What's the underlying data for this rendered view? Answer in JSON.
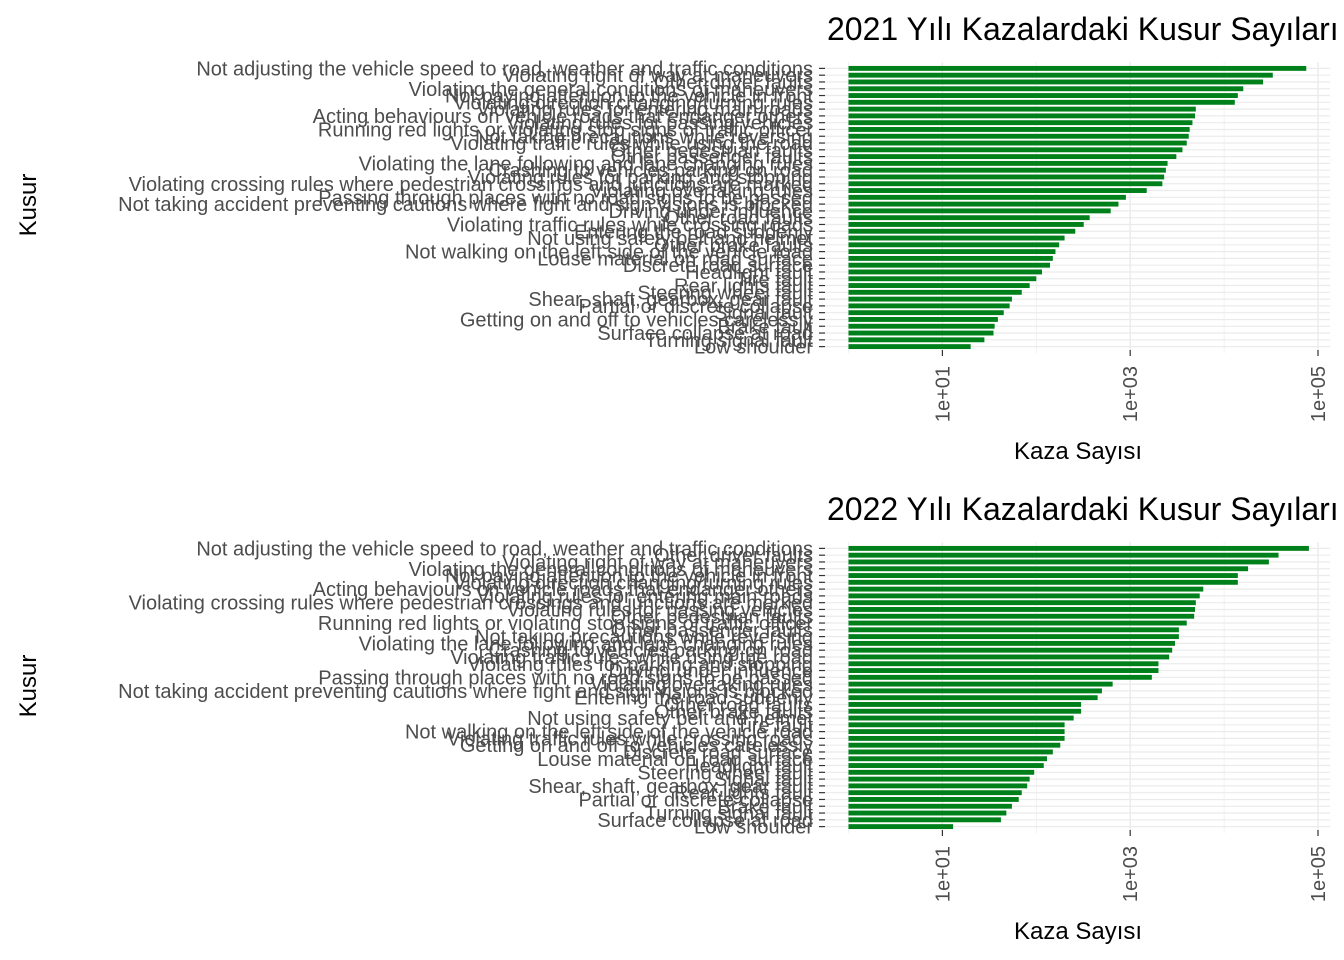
{
  "chart_data": [
    {
      "type": "bar",
      "orientation": "horizontal",
      "title": "2021 Yılı Kazalardaki Kusur Sayıları",
      "xlabel": "Kaza Sayısı",
      "ylabel": "Kusur",
      "x_scale": "log10",
      "xlim": [
        1,
        100000
      ],
      "x_ticks": [
        "1e+01",
        "1e+03",
        "1e+05"
      ],
      "x_tick_values": [
        10,
        1000,
        100000
      ],
      "grid": true,
      "bar_color": "#00801a",
      "categories": [
        "Not adjusting the vehicle speed to road, weather and traffic conditions",
        "Violating right of way at maneuvers",
        "Other driver faults",
        "Violating the general conditions of maneuvers",
        "Not paying attention to the vehicle in front",
        "Violating direction changing/turning rules",
        "Violating rules for entering main roads",
        "Acting behaviours on vehicle roads that endanger others",
        "Violating rules for passing vehicles",
        "Running red lights or violating stop signs of traffic officer",
        "Not taking precautions while reversing",
        "Violating traffic rules while using the road",
        "Other pedestrian faults",
        "Other passenger faults",
        "Violating the lane following and lane changing rules",
        "Crashing to vehicles parking on road",
        "Violating rules for parking and stopping",
        "Violating crossing rules where pedestrian crossings and junctions are marked",
        "Violating overtaking rules",
        "Passing through places with no road signs to be passed",
        "Not taking accident preventing cautions where fight and sign visions is blocked",
        "Driving under influence",
        "Other road faults",
        "Violating traffic rules while crossing roads",
        "Entering the road suddenly",
        "Not using safety belt and helmet",
        "Other brake faults",
        "Not walking on the left side of the vehicle road",
        "Louse material on road surface",
        "Discrete road surface",
        "Headlight fault",
        "Tire fault",
        "Rear lights fault",
        "Steering wheel fault",
        "Shear, shaft, gearbox, gear fault",
        "Partial or discrete collapse",
        "Signal fault",
        "Getting on and off to vehicles carelessly",
        "Brake fault",
        "Surface collapse at road",
        "Turning signal fault",
        "Low shoulder"
      ],
      "values": [
        75000,
        33000,
        26000,
        16000,
        14000,
        13000,
        5000,
        4900,
        4600,
        4300,
        4200,
        4000,
        3600,
        3100,
        2500,
        2400,
        2300,
        2200,
        1500,
        900,
        750,
        620,
        370,
        320,
        260,
        200,
        175,
        160,
        150,
        140,
        115,
        100,
        85,
        70,
        55,
        52,
        45,
        39,
        36,
        35,
        28,
        20
      ]
    },
    {
      "type": "bar",
      "orientation": "horizontal",
      "title": "2022 Yılı Kazalardaki Kusur Sayıları",
      "xlabel": "Kaza Sayısı",
      "ylabel": "Kusur",
      "x_scale": "log10",
      "xlim": [
        1,
        100000
      ],
      "x_ticks": [
        "1e+01",
        "1e+03",
        "1e+05"
      ],
      "x_tick_values": [
        10,
        1000,
        100000
      ],
      "grid": true,
      "bar_color": "#00801a",
      "categories": [
        "Not adjusting the vehicle speed to road, weather and traffic conditions",
        "Other driver faults",
        "Violating right of way at maneuvers",
        "Violating the general conditions of maneuvers",
        "Not paying attention to the vehicle in front",
        "Violating direction changing/turning rules",
        "Acting behaviours on vehicle roads that endanger others",
        "Violating rules for entering main roads",
        "Violating crossing rules where pedestrian crossings and junctions are marked",
        "Violating rules for passing vehicles",
        "Other pedestrian faults",
        "Running red lights or violating stop signs of traffic officer",
        "Other passenger faults",
        "Not taking precautions while reversing",
        "Violating the lane following and lane changing rules",
        "Crashing to vehicles parking on road",
        "Violating traffic rules while using the road",
        "Violating rules for parking and stopping",
        "Driving under influence",
        "Passing through places with no road signs to be passed",
        "Violating overtaking rules",
        "Not taking accident preventing cautions where fight and sign visions is blocked",
        "Entering the road suddenly",
        "Other road faults",
        "Other brake faults",
        "Not using safety belt and helmet",
        "Tire fault",
        "Not walking on the left side of the vehicle road",
        "Violating traffic rules while crossing roads",
        "Getting on and off to vehicles carelessly",
        "Discrete road surface",
        "Louse material on road surface",
        "Headlight fault",
        "Steering wheel fault",
        "Signal fault",
        "Shear, shaft, gearbox, gear fault",
        "Rear lights fault",
        "Partial or discrete collapse",
        "Brake fault",
        "Turning signal fault",
        "Surface collapse at road",
        "Low shoulder"
      ],
      "values": [
        80000,
        38000,
        30000,
        18000,
        14000,
        14000,
        6000,
        5500,
        5000,
        4900,
        4800,
        4000,
        3300,
        3300,
        3000,
        2800,
        2600,
        2000,
        2000,
        1700,
        650,
        500,
        450,
        300,
        300,
        250,
        200,
        200,
        200,
        180,
        150,
        130,
        120,
        95,
        85,
        80,
        70,
        65,
        55,
        48,
        42,
        13
      ]
    }
  ]
}
